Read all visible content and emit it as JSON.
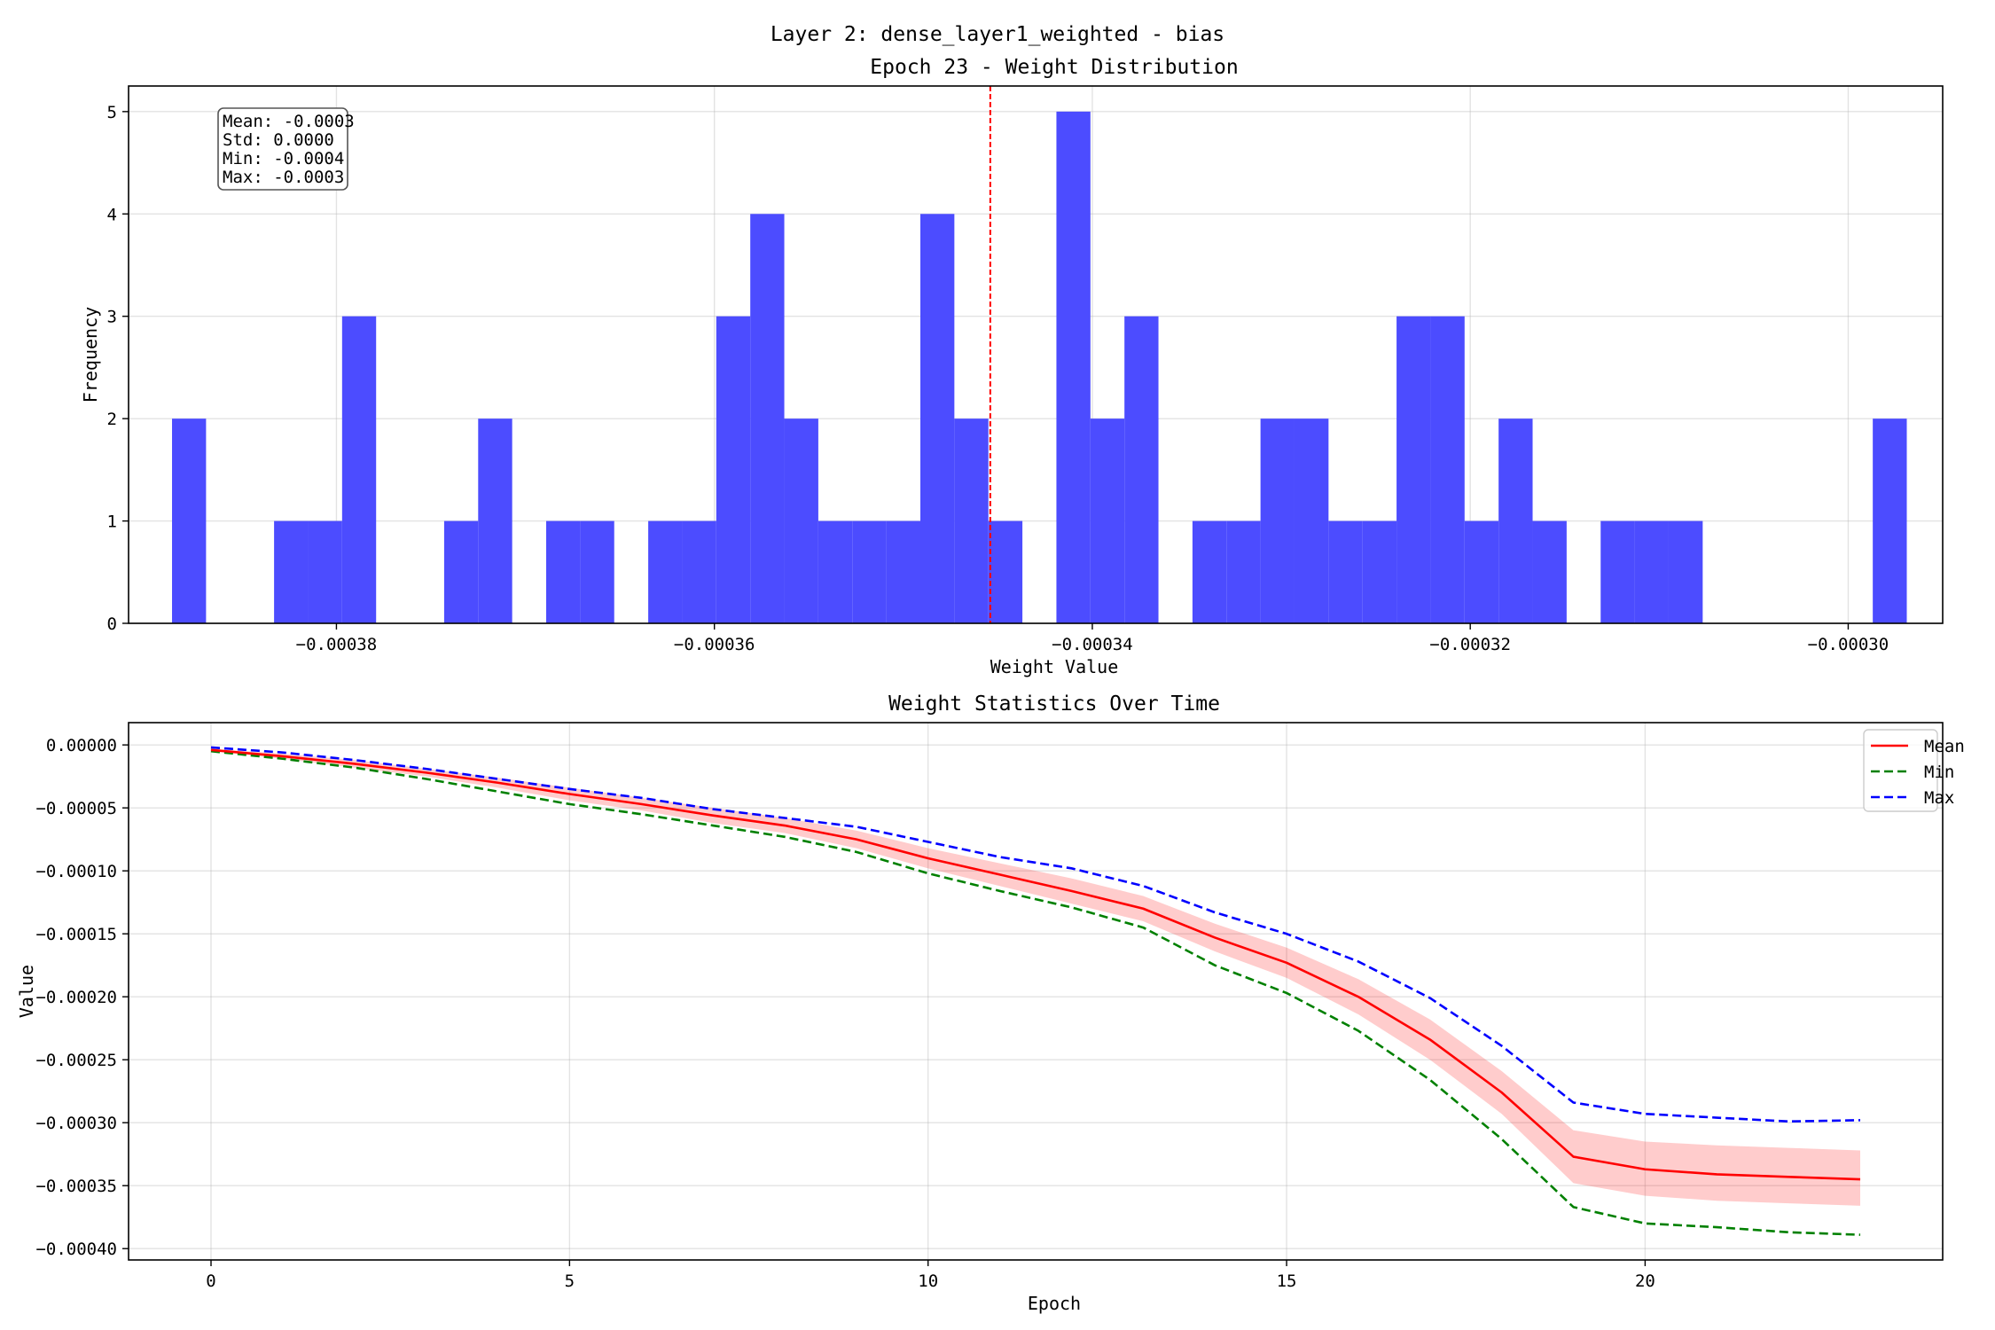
{
  "figure": {
    "suptitle": "Layer 2: dense_layer1_weighted - bias"
  },
  "chart_data": [
    {
      "type": "bar",
      "title": "Epoch 23 - Weight Distribution",
      "xlabel": "Weight Value",
      "ylabel": "Frequency",
      "xlim": [
        -0.000391,
        -0.000295
      ],
      "ylim": [
        0,
        5.25
      ],
      "xticks": [
        -0.00038,
        -0.00036,
        -0.00034,
        -0.00032,
        -0.0003
      ],
      "xtick_labels": [
        "−0.00038",
        "−0.00036",
        "−0.00034",
        "−0.00032",
        "−0.00030"
      ],
      "yticks": [
        0,
        1,
        2,
        3,
        4,
        5
      ],
      "ytick_labels": [
        "0",
        "1",
        "2",
        "3",
        "4",
        "5"
      ],
      "bin_width": 1.8e-06,
      "bin_starts": [
        -0.0003887,
        -0.0003833,
        -0.0003815,
        -0.0003797,
        -0.0003743,
        -0.0003725,
        -0.0003689,
        -0.0003671,
        -0.0003635,
        -0.0003617,
        -0.0003599,
        -0.0003581,
        -0.0003563,
        -0.0003545,
        -0.0003527,
        -0.0003509,
        -0.0003491,
        -0.0003473,
        -0.0003455,
        -0.0003419,
        -0.0003401,
        -0.0003383,
        -0.0003347,
        -0.0003329,
        -0.0003311,
        -0.0003293,
        -0.0003275,
        -0.0003257,
        -0.0003239,
        -0.0003221,
        -0.0003203,
        -0.0003185,
        -0.0003167,
        -0.0003131,
        -0.0003113,
        -0.0003095,
        -0.0002987
      ],
      "counts": [
        2,
        1,
        1,
        3,
        1,
        2,
        1,
        1,
        1,
        1,
        3,
        4,
        2,
        1,
        1,
        1,
        4,
        2,
        1,
        5,
        2,
        3,
        1,
        1,
        2,
        2,
        1,
        1,
        3,
        3,
        1,
        2,
        1,
        1,
        1,
        1,
        2
      ],
      "mean_line": -0.0003454,
      "bar_color": "#4c4cff",
      "mean_line_color": "#ff0000",
      "stats_box": [
        "Mean: -0.0003",
        "Std: 0.0000",
        "Min: -0.0004",
        "Max: -0.0003"
      ],
      "grid": true
    },
    {
      "type": "line",
      "title": "Weight Statistics Over Time",
      "xlabel": "Epoch",
      "ylabel": "Value",
      "xlim": [
        -1.15,
        24.15
      ],
      "ylim": [
        -0.000409,
        1.77e-05
      ],
      "xticks": [
        0,
        5,
        10,
        15,
        20
      ],
      "xtick_labels": [
        "0",
        "5",
        "10",
        "15",
        "20"
      ],
      "yticks": [
        0.0,
        -5e-05,
        -0.0001,
        -0.00015,
        -0.0002,
        -0.00025,
        -0.0003,
        -0.00035,
        -0.0004
      ],
      "ytick_labels": [
        "0.00000",
        "−0.00005",
        "−0.00010",
        "−0.00015",
        "−0.00020",
        "−0.00025",
        "−0.00030",
        "−0.00035",
        "−0.00040"
      ],
      "x": [
        0,
        1,
        2,
        3,
        4,
        5,
        6,
        7,
        8,
        9,
        10,
        11,
        12,
        13,
        14,
        15,
        16,
        17,
        18,
        19,
        20,
        21,
        22,
        23
      ],
      "series": [
        {
          "name": "Mean",
          "color": "#ff0000",
          "dash": "solid",
          "values": [
            -4e-06,
            -9e-06,
            -1.5e-05,
            -2.2e-05,
            -3e-05,
            -3.9e-05,
            -4.7e-05,
            -5.6e-05,
            -6.4e-05,
            -7.5e-05,
            -9e-05,
            -0.000103,
            -0.000116,
            -0.00013,
            -0.000153,
            -0.000173,
            -0.0002,
            -0.000234,
            -0.000276,
            -0.000327,
            -0.000337,
            -0.000341,
            -0.000343,
            -0.000345
          ]
        },
        {
          "name": "Min",
          "color": "#008000",
          "dash": "dashed",
          "values": [
            -5e-06,
            -1.1e-05,
            -1.8e-05,
            -2.7e-05,
            -3.7e-05,
            -4.7e-05,
            -5.5e-05,
            -6.4e-05,
            -7.3e-05,
            -8.5e-05,
            -0.000102,
            -0.000116,
            -0.000129,
            -0.000145,
            -0.000175,
            -0.000197,
            -0.000227,
            -0.000266,
            -0.000313,
            -0.000367,
            -0.00038,
            -0.000383,
            -0.000387,
            -0.000389
          ]
        },
        {
          "name": "Max",
          "color": "#0000ff",
          "dash": "dashed",
          "values": [
            -2e-06,
            -6e-06,
            -1.2e-05,
            -1.9e-05,
            -2.7e-05,
            -3.5e-05,
            -4.2e-05,
            -5.1e-05,
            -5.8e-05,
            -6.5e-05,
            -7.7e-05,
            -8.9e-05,
            -9.8e-05,
            -0.000112,
            -0.000133,
            -0.00015,
            -0.000172,
            -0.000201,
            -0.000239,
            -0.000284,
            -0.000293,
            -0.000296,
            -0.000299,
            -0.000298
          ]
        }
      ],
      "band": {
        "color": "#ff0000",
        "opacity": 0.2,
        "upper": [
          -3e-06,
          -7e-06,
          -1.2e-05,
          -1.9e-05,
          -2.6e-05,
          -3.4e-05,
          -4.2e-05,
          -5e-05,
          -5.8e-05,
          -6.8e-05,
          -8.2e-05,
          -9.4e-05,
          -0.000106,
          -0.00012,
          -0.000142,
          -0.000161,
          -0.000186,
          -0.000218,
          -0.000259,
          -0.000306,
          -0.000315,
          -0.000318,
          -0.00032,
          -0.000322
        ],
        "lower": [
          -5e-06,
          -1.1e-05,
          -1.8e-05,
          -2.5e-05,
          -3.4e-05,
          -4.4e-05,
          -5.2e-05,
          -6.2e-05,
          -7e-05,
          -8.2e-05,
          -9.8e-05,
          -0.000112,
          -0.000126,
          -0.00014,
          -0.000164,
          -0.000185,
          -0.000214,
          -0.00025,
          -0.000293,
          -0.000348,
          -0.000358,
          -0.000362,
          -0.000364,
          -0.000366
        ]
      },
      "legend": {
        "placement": "upper right",
        "entries": [
          "Mean",
          "Min",
          "Max"
        ]
      },
      "grid": true
    }
  ]
}
